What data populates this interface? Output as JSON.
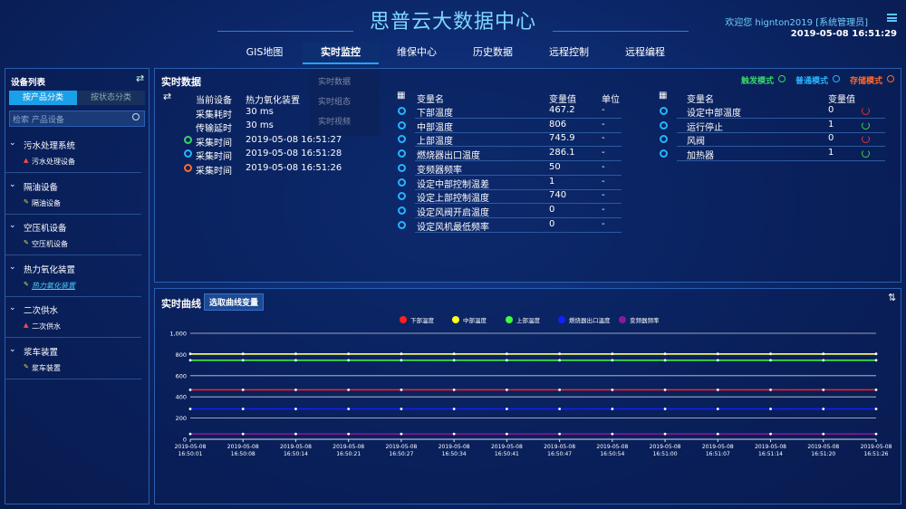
{
  "header": {
    "title": "思普云大数据中心",
    "welcome": "欢迎您  hignton2019 [系统管理员]",
    "datetime": "2019-05-08 16:51:29"
  },
  "nav": {
    "items": [
      "GIS地图",
      "实时监控",
      "维保中心",
      "历史数据",
      "远程控制",
      "远程编程"
    ],
    "dropdown": [
      "实时数据",
      "实时组态",
      "实时视频"
    ]
  },
  "sidebar": {
    "title": "设备列表",
    "tabs": [
      "按产品分类",
      "按状态分类"
    ],
    "search": "检索 产品设备",
    "groups": [
      {
        "name": "污水处理系统",
        "items": [
          "污水处理设备"
        ]
      },
      {
        "name": "隔油设备",
        "items": [
          "隔油设备"
        ]
      },
      {
        "name": "空压机设备",
        "items": [
          "空压机设备"
        ]
      },
      {
        "name": "热力氧化装置",
        "items": [
          "热力氧化装置"
        ]
      },
      {
        "name": "二次供水",
        "items": [
          "二次供水"
        ]
      },
      {
        "name": "浆车装置",
        "items": [
          "浆车装置"
        ]
      }
    ]
  },
  "realtime": {
    "title": "实时数据",
    "modes": [
      "触发模式",
      "普通模式",
      "存储模式"
    ],
    "info": [
      [
        "当前设备",
        "热力氧化装置"
      ],
      [
        "采集耗时",
        "30 ms"
      ],
      [
        "传输延时",
        "30 ms"
      ],
      [
        "采集时间",
        "2019-05-08 16:51:27"
      ],
      [
        "采集时间",
        "2019-05-08 16:51:28"
      ],
      [
        "采集时间",
        "2019-05-08 16:51:26"
      ]
    ],
    "table1": {
      "headers": [
        "变量名",
        "变量值",
        "单位"
      ],
      "rows": [
        [
          "下部温度",
          "467.2",
          "-"
        ],
        [
          "中部温度",
          "806",
          "-"
        ],
        [
          "上部温度",
          "745.9",
          "-"
        ],
        [
          "燃烧器出口温度",
          "286.1",
          "-"
        ],
        [
          "变频器频率",
          "50",
          "-"
        ],
        [
          "设定中部控制温差",
          "1",
          "-"
        ],
        [
          "设定上部控制温度",
          "740",
          "-"
        ],
        [
          "设定风阀开启温度",
          "0",
          "-"
        ],
        [
          "设定风机最低频率",
          "0",
          "-"
        ]
      ]
    },
    "table2": {
      "headers": [
        "变量名",
        "变量值"
      ],
      "rows": [
        [
          "设定中部温度",
          "0"
        ],
        [
          "运行停止",
          "1"
        ],
        [
          "风阀",
          "0"
        ],
        [
          "加热器",
          "1"
        ]
      ]
    }
  },
  "curve": {
    "title": "实时曲线",
    "button": "选取曲线变量"
  },
  "chart_data": {
    "type": "line",
    "categories": [
      "2019-05-08 16:50:01",
      "2019-05-08 16:50:08",
      "2019-05-08 16:50:14",
      "2019-05-08 16:50:21",
      "2019-05-08 16:50:27",
      "2019-05-08 16:50:34",
      "2019-05-08 16:50:41",
      "2019-05-08 16:50:47",
      "2019-05-08 16:50:54",
      "2019-05-08 16:51:00",
      "2019-05-08 16:51:07",
      "2019-05-08 16:51:14",
      "2019-05-08 16:51:20",
      "2019-05-08 16:51:26"
    ],
    "series": [
      {
        "name": "下部温度",
        "color": "#ff2020",
        "values": [
          467.2,
          467.2,
          467.2,
          467.2,
          467.2,
          467.2,
          467.2,
          467.2,
          467.2,
          467.2,
          467.2,
          467.2,
          467.2,
          467.2
        ]
      },
      {
        "name": "中部温度",
        "color": "#ffff20",
        "values": [
          806,
          806,
          806,
          806,
          806,
          806,
          806,
          806,
          806,
          806,
          806,
          806,
          806,
          806
        ]
      },
      {
        "name": "上部温度",
        "color": "#40ff40",
        "values": [
          745.9,
          745.9,
          745.9,
          745.9,
          745.9,
          745.9,
          745.9,
          745.9,
          745.9,
          745.9,
          745.9,
          745.9,
          745.9,
          745.9
        ]
      },
      {
        "name": "燃烧器出口温度",
        "color": "#1020ff",
        "values": [
          286.1,
          286.1,
          286.1,
          286.1,
          286.1,
          286.1,
          286.1,
          286.1,
          286.1,
          286.1,
          286.1,
          286.1,
          286.1,
          286.1
        ]
      },
      {
        "name": "变频器频率",
        "color": "#8a1a9a",
        "values": [
          50,
          50,
          50,
          50,
          50,
          50,
          50,
          50,
          50,
          50,
          50,
          50,
          50,
          50
        ]
      }
    ],
    "ylim": [
      0,
      1000
    ],
    "yticks": [
      0,
      200,
      400,
      600,
      800,
      {
        "value": 1000,
        "label": "1,000"
      }
    ],
    "grid": true
  }
}
